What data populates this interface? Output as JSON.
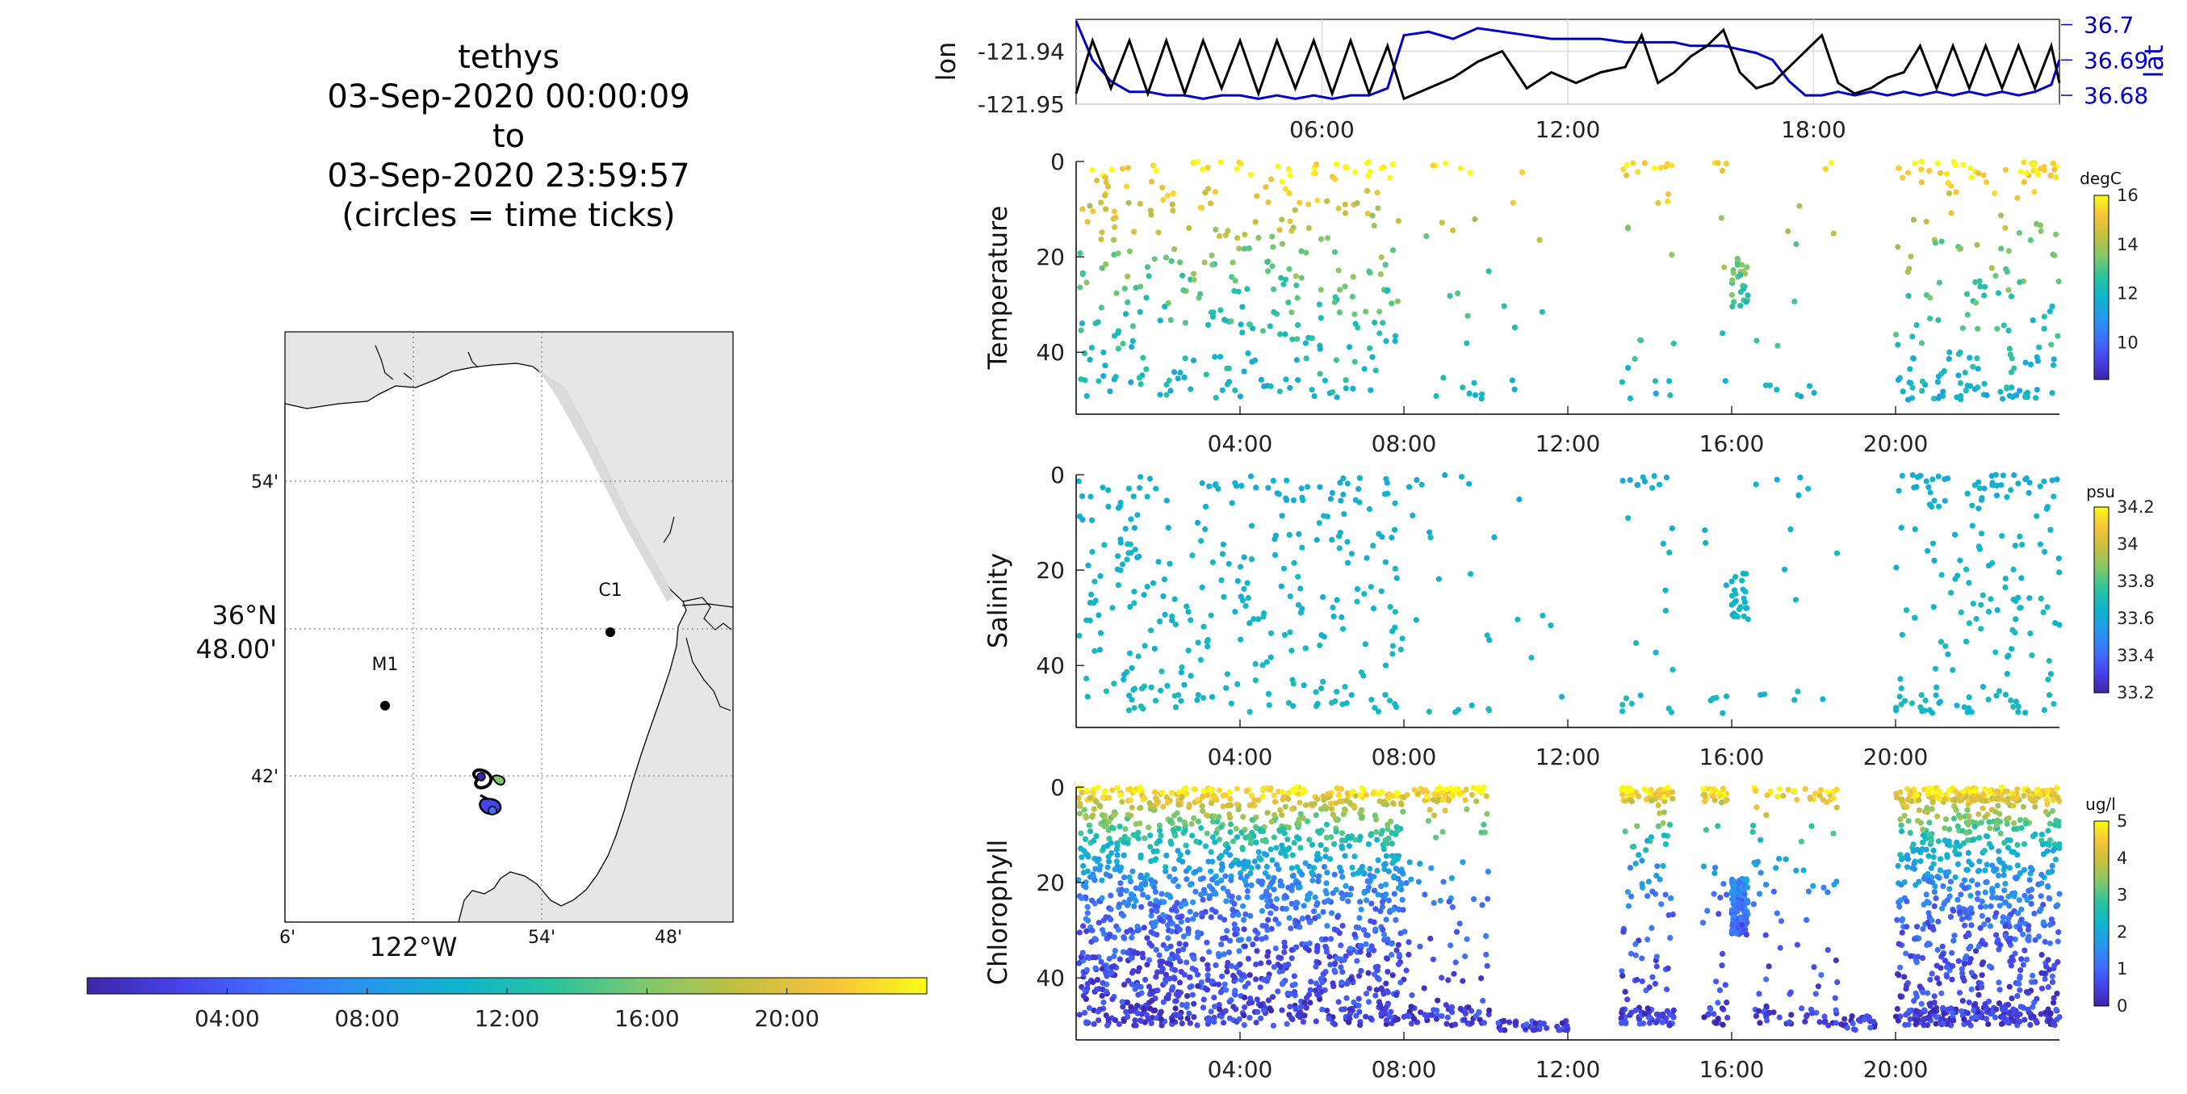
{
  "title_lines": [
    "tethys",
    "03-Sep-2020 00:00:09",
    "to",
    "03-Sep-2020 23:59:57",
    "(circles = time ticks)"
  ],
  "colors": {
    "lon_line": "#000000",
    "lat_line": "#0000cc",
    "colormap": [
      "#3e26a8",
      "#4743e9",
      "#3f72fe",
      "#2797eb",
      "#0fb4cd",
      "#2ac3a0",
      "#7fc86c",
      "#c4bf40",
      "#f7c33c",
      "#f9fb15"
    ],
    "land": "#e6e6e6",
    "sea": "#ffffff"
  },
  "map": {
    "lon_ticks": [
      "6'",
      "122°W",
      "54'",
      "48'"
    ],
    "lat_ticks": [
      "54'",
      "36°N 48.00'",
      "42'"
    ],
    "lat_major_line1": "36°N",
    "lat_major_line2": "48.00'",
    "moorings": [
      {
        "label": "M1",
        "lon": -122.035,
        "lat": 36.747
      },
      {
        "label": "C1",
        "lon": -121.847,
        "lat": 36.797
      }
    ],
    "track_center": {
      "lon": -121.94,
      "lat": 36.69
    }
  },
  "time_colorbar": {
    "ticks": [
      "04:00",
      "08:00",
      "12:00",
      "16:00",
      "20:00"
    ],
    "tick_hours": [
      4,
      8,
      12,
      16,
      20
    ]
  },
  "chart_data": [
    {
      "type": "line",
      "name": "position",
      "xlim_hours": [
        0,
        24
      ],
      "xticks": [
        "06:00",
        "12:00",
        "18:00"
      ],
      "xtick_hours": [
        6,
        12,
        18
      ],
      "ylabel_left": "lon",
      "ylabel_right": "lat",
      "left_ticks": [
        "-121.94",
        "-121.95"
      ],
      "left_tick_values": [
        -121.94,
        -121.95
      ],
      "left_ylim": [
        -121.95,
        -121.934
      ],
      "right_ticks": [
        "36.7",
        "36.69",
        "36.68"
      ],
      "right_tick_values": [
        36.7,
        36.69,
        36.68
      ],
      "right_ylim": [
        36.6775,
        36.7015
      ],
      "series": [
        {
          "name": "lon",
          "axis": "left",
          "x": [
            0,
            0.4,
            0.85,
            1.3,
            1.75,
            2.2,
            2.65,
            3.1,
            3.55,
            4.0,
            4.45,
            4.9,
            5.35,
            5.8,
            6.25,
            6.7,
            7.15,
            7.6,
            8.0,
            8.6,
            9.2,
            9.8,
            10.4,
            11.0,
            11.6,
            12.2,
            12.8,
            13.4,
            13.8,
            14.2,
            14.6,
            15.0,
            15.4,
            15.8,
            16.2,
            16.6,
            17.0,
            17.4,
            17.8,
            18.2,
            18.6,
            19.0,
            19.4,
            19.8,
            20.2,
            20.6,
            21.0,
            21.4,
            21.8,
            22.2,
            22.6,
            23.0,
            23.4,
            23.8,
            24.0
          ],
          "y": [
            -121.948,
            -121.938,
            -121.947,
            -121.938,
            -121.948,
            -121.938,
            -121.948,
            -121.938,
            -121.947,
            -121.938,
            -121.948,
            -121.938,
            -121.947,
            -121.938,
            -121.948,
            -121.938,
            -121.948,
            -121.939,
            -121.949,
            -121.947,
            -121.945,
            -121.942,
            -121.94,
            -121.947,
            -121.944,
            -121.946,
            -121.944,
            -121.943,
            -121.937,
            -121.946,
            -121.944,
            -121.941,
            -121.939,
            -121.936,
            -121.944,
            -121.947,
            -121.946,
            -121.943,
            -121.94,
            -121.937,
            -121.946,
            -121.948,
            -121.947,
            -121.945,
            -121.944,
            -121.939,
            -121.947,
            -121.939,
            -121.947,
            -121.939,
            -121.947,
            -121.939,
            -121.947,
            -121.939,
            -121.946
          ]
        },
        {
          "name": "lat",
          "axis": "right",
          "x": [
            0,
            0.4,
            0.85,
            1.3,
            1.75,
            2.2,
            2.65,
            3.1,
            3.55,
            4.0,
            4.45,
            4.9,
            5.35,
            5.8,
            6.25,
            6.7,
            7.15,
            7.6,
            8.0,
            8.6,
            9.2,
            9.8,
            10.4,
            11.0,
            11.6,
            12.2,
            12.8,
            13.4,
            13.8,
            14.2,
            14.6,
            15.0,
            15.4,
            15.8,
            16.2,
            16.6,
            17.0,
            17.4,
            17.8,
            18.2,
            18.6,
            19.0,
            19.4,
            19.8,
            20.2,
            20.6,
            21.0,
            21.4,
            21.8,
            22.2,
            22.6,
            23.0,
            23.4,
            23.8,
            24.0
          ],
          "y": [
            36.701,
            36.69,
            36.684,
            36.681,
            36.681,
            36.68,
            36.68,
            36.679,
            36.68,
            36.68,
            36.679,
            36.68,
            36.679,
            36.68,
            36.679,
            36.68,
            36.68,
            36.682,
            36.697,
            36.698,
            36.696,
            36.699,
            36.698,
            36.697,
            36.696,
            36.696,
            36.696,
            36.695,
            36.695,
            36.695,
            36.695,
            36.694,
            36.694,
            36.694,
            36.693,
            36.692,
            36.69,
            36.684,
            36.68,
            36.68,
            36.681,
            36.68,
            36.681,
            36.68,
            36.681,
            36.68,
            36.681,
            36.68,
            36.681,
            36.68,
            36.681,
            36.68,
            36.681,
            36.683,
            36.69
          ]
        }
      ]
    },
    {
      "type": "scatter",
      "name": "temperature",
      "ylabel": "Temperature",
      "units": "degC",
      "xlim_hours": [
        0,
        24
      ],
      "ylim": [
        53,
        0
      ],
      "yticks": [
        0,
        20,
        40
      ],
      "xticks": [
        "04:00",
        "08:00",
        "12:00",
        "16:00",
        "20:00"
      ],
      "xtick_hours": [
        4,
        8,
        12,
        16,
        20
      ],
      "clim": [
        8.5,
        16
      ],
      "cbar_ticks": [
        10,
        12,
        14,
        16
      ],
      "segments": [
        {
          "start": 0.05,
          "end": 8.0,
          "count": 340,
          "cyc": 0.95
        },
        {
          "start": 8.0,
          "end": 10.1,
          "count": 22,
          "cyc": 0.45
        },
        {
          "start": 10.2,
          "end": 12.0,
          "count": 8,
          "cyc": 0.9
        },
        {
          "start": 13.3,
          "end": 14.6,
          "count": 28,
          "cyc": 0.45
        },
        {
          "start": 15.3,
          "end": 15.9,
          "count": 8,
          "cyc": 0.45
        },
        {
          "start": 16.0,
          "end": 16.4,
          "count": 30,
          "cyc": 1.0,
          "dmin": 20,
          "dmax": 31
        },
        {
          "start": 16.5,
          "end": 18.6,
          "count": 16,
          "cyc": 0.45
        },
        {
          "start": 20.0,
          "end": 24.0,
          "count": 190,
          "cyc": 0.7
        }
      ],
      "value_rule": {
        "surface": 16.0,
        "deep": 11.0,
        "decay_depth": 28,
        "noise": 0.8
      }
    },
    {
      "type": "scatter",
      "name": "salinity",
      "ylabel": "Salinity",
      "units": "psu",
      "xlim_hours": [
        0,
        24
      ],
      "ylim": [
        53,
        0
      ],
      "yticks": [
        0,
        20,
        40
      ],
      "xticks": [
        "04:00",
        "08:00",
        "12:00",
        "16:00",
        "20:00"
      ],
      "xtick_hours": [
        4,
        8,
        12,
        16,
        20
      ],
      "clim": [
        33.2,
        34.2
      ],
      "cbar_ticks": [
        33.2,
        33.4,
        33.6,
        33.8,
        34,
        34.2
      ],
      "segments": [
        {
          "start": 0.05,
          "end": 8.0,
          "count": 300,
          "cyc": 0.95
        },
        {
          "start": 8.0,
          "end": 10.1,
          "count": 20,
          "cyc": 0.45
        },
        {
          "start": 10.2,
          "end": 12.0,
          "count": 7,
          "cyc": 0.9
        },
        {
          "start": 13.3,
          "end": 14.6,
          "count": 26,
          "cyc": 0.45
        },
        {
          "start": 15.3,
          "end": 15.9,
          "count": 8,
          "cyc": 0.45
        },
        {
          "start": 16.0,
          "end": 16.4,
          "count": 26,
          "cyc": 1.0,
          "dmin": 20,
          "dmax": 31
        },
        {
          "start": 16.5,
          "end": 18.6,
          "count": 14,
          "cyc": 0.45
        },
        {
          "start": 20.0,
          "end": 24.0,
          "count": 170,
          "cyc": 0.7
        }
      ],
      "value_rule": {
        "surface": 33.62,
        "deep": 33.68,
        "decay_depth": 30,
        "noise": 0.04
      }
    },
    {
      "type": "scatter",
      "name": "chlorophyll",
      "ylabel": "Chlorophyll",
      "units": "ug/l",
      "xlim_hours": [
        0,
        24
      ],
      "ylim": [
        53,
        0
      ],
      "yticks": [
        0,
        20,
        40
      ],
      "xticks": [
        "04:00",
        "08:00",
        "12:00",
        "16:00",
        "20:00"
      ],
      "xtick_hours": [
        4,
        8,
        12,
        16,
        20
      ],
      "clim": [
        0,
        5
      ],
      "cbar_ticks": [
        0,
        1,
        2,
        3,
        4,
        5
      ],
      "segments": [
        {
          "start": 0.05,
          "end": 8.0,
          "count": 1600,
          "cyc": 0.95
        },
        {
          "start": 8.0,
          "end": 10.1,
          "count": 160,
          "cyc": 0.45
        },
        {
          "start": 10.2,
          "end": 12.0,
          "count": 40,
          "cyc": 0.0,
          "dmin": 49,
          "dmax": 51
        },
        {
          "start": 13.3,
          "end": 14.6,
          "count": 170,
          "cyc": 0.45
        },
        {
          "start": 15.3,
          "end": 15.9,
          "count": 60,
          "cyc": 0.45
        },
        {
          "start": 16.0,
          "end": 16.4,
          "count": 140,
          "cyc": 1.0,
          "dmin": 19,
          "dmax": 31
        },
        {
          "start": 16.5,
          "end": 18.6,
          "count": 110,
          "cyc": 0.45
        },
        {
          "start": 18.6,
          "end": 19.5,
          "count": 25,
          "cyc": 0.0,
          "dmin": 48,
          "dmax": 51
        },
        {
          "start": 20.0,
          "end": 24.0,
          "count": 900,
          "cyc": 0.7
        }
      ],
      "value_rule": {
        "surface": 5.0,
        "deep": 0.3,
        "decay_depth": 15,
        "noise": 0.5
      }
    }
  ]
}
